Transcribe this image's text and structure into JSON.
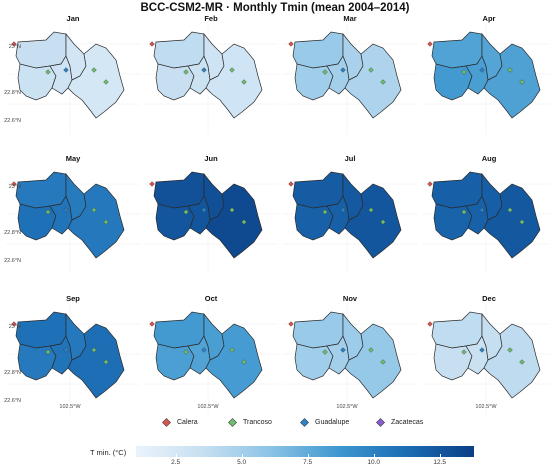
{
  "title": "BCC-CSM2-MR · Monthly Tmin (mean 2004–2014)",
  "lat_labels": [
    "23°N",
    "22.8°N",
    "22.6°N"
  ],
  "lon_label": "102.5°W",
  "colorbar": {
    "title": "T min. (°C)",
    "min": 1.0,
    "max": 13.8,
    "ticks": [
      "2.5",
      "5.0",
      "7.5",
      "10.0",
      "12.5"
    ],
    "tick_values": [
      2.5,
      5.0,
      7.5,
      10.0,
      12.5
    ],
    "colors": [
      "#eaf3fb",
      "#c6dff1",
      "#8ac3e6",
      "#3e97cf",
      "#1c6db4",
      "#0b3f86"
    ]
  },
  "legend": [
    {
      "name": "Calera",
      "color": "#d9534f"
    },
    {
      "name": "Trancoso",
      "color": "#6cbf6c"
    },
    {
      "name": "Guadalupe",
      "color": "#2b82c9"
    },
    {
      "name": "Zacatecas",
      "color": "#8a5cd6"
    }
  ],
  "chart_data": {
    "type": "heatmap",
    "variable": "T min. (°C)",
    "months": [
      "Jan",
      "Feb",
      "Mar",
      "Apr",
      "May",
      "Jun",
      "Jul",
      "Aug",
      "Sep",
      "Oct",
      "Nov",
      "Dec"
    ],
    "monthly_tmin_by_region": [
      {
        "month": "Jan",
        "values": [
          3.5,
          3.2,
          3.0,
          2.8,
          2.6
        ]
      },
      {
        "month": "Feb",
        "values": [
          3.8,
          3.5,
          3.2,
          3.0,
          2.9
        ]
      },
      {
        "month": "Mar",
        "values": [
          5.5,
          5.2,
          5.0,
          4.8,
          4.6
        ]
      },
      {
        "month": "Apr",
        "values": [
          8.0,
          8.5,
          8.3,
          7.9,
          8.1
        ]
      },
      {
        "month": "May",
        "values": [
          10.5,
          11.0,
          10.8,
          10.4,
          10.6
        ]
      },
      {
        "month": "Jun",
        "values": [
          12.8,
          12.5,
          12.6,
          12.9,
          13.2
        ]
      },
      {
        "month": "Jul",
        "values": [
          12.2,
          11.9,
          12.0,
          12.3,
          12.5
        ]
      },
      {
        "month": "Aug",
        "values": [
          12.0,
          11.8,
          11.9,
          12.1,
          12.4
        ]
      },
      {
        "month": "Sep",
        "values": [
          11.0,
          10.5,
          10.8,
          10.6,
          11.2
        ]
      },
      {
        "month": "Oct",
        "values": [
          8.5,
          8.2,
          8.0,
          8.3,
          8.4
        ]
      },
      {
        "month": "Nov",
        "values": [
          5.5,
          5.2,
          5.0,
          5.3,
          5.6
        ]
      },
      {
        "month": "Dec",
        "values": [
          3.8,
          3.5,
          3.3,
          3.6,
          3.9
        ]
      }
    ]
  }
}
